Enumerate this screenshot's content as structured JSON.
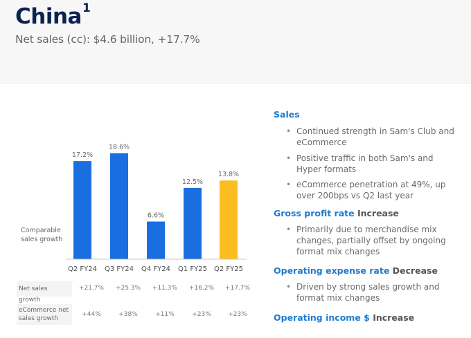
{
  "header": {
    "title": "China",
    "title_footnote": "1",
    "subtitle": "Net sales (cc): $4.6 billion, +17.7%"
  },
  "colors": {
    "bar": "#1a6fe0",
    "bar_highlight": "#fbbd1f",
    "title": "#0a2350",
    "section_heading": "#1f7ad1"
  },
  "chart_data": {
    "type": "bar",
    "title": "",
    "ylabel": "Comparable sales growth",
    "ylabel_lines": [
      "Comparable",
      "sales growth"
    ],
    "xlabel": "",
    "categories": [
      "Q2 FY24",
      "Q3 FY24",
      "Q4 FY24",
      "Q1 FY25",
      "Q2 FY25"
    ],
    "values": [
      17.2,
      18.6,
      6.6,
      12.5,
      13.8
    ],
    "data_labels": [
      "17.2%",
      "18.6%",
      "6.6%",
      "12.5%",
      "13.8%"
    ],
    "highlight_index": 4,
    "ylim": [
      0,
      20
    ],
    "grid": false,
    "legend": "none"
  },
  "table": {
    "rows": [
      {
        "label": "Net sales growth",
        "values": [
          "+21.7%",
          "+25.3%",
          "+11.3%",
          "+16.2%",
          "+17.7%"
        ]
      },
      {
        "label": "eCommerce net sales growth",
        "values": [
          "+44%",
          "+38%",
          "+11%",
          "+23%",
          "+23%"
        ]
      }
    ]
  },
  "sections": [
    {
      "heading": "Sales",
      "status": "",
      "bullets": [
        "Continued strength in Sam's Club and eCommerce",
        "Positive traffic in both Sam's and Hyper formats",
        "eCommerce penetration at 49%, up over 200bps vs Q2 last year"
      ]
    },
    {
      "heading": "Gross profit rate",
      "status": "Increase",
      "bullets": [
        "Primarily due to merchandise mix changes, partially offset by ongoing format mix changes"
      ]
    },
    {
      "heading": "Operating expense rate",
      "status": "Decrease",
      "bullets": [
        "Driven by strong sales growth and format mix changes"
      ]
    },
    {
      "heading": "Operating income $",
      "status": "Increase",
      "bullets": []
    }
  ],
  "bullet_glyph": "•"
}
